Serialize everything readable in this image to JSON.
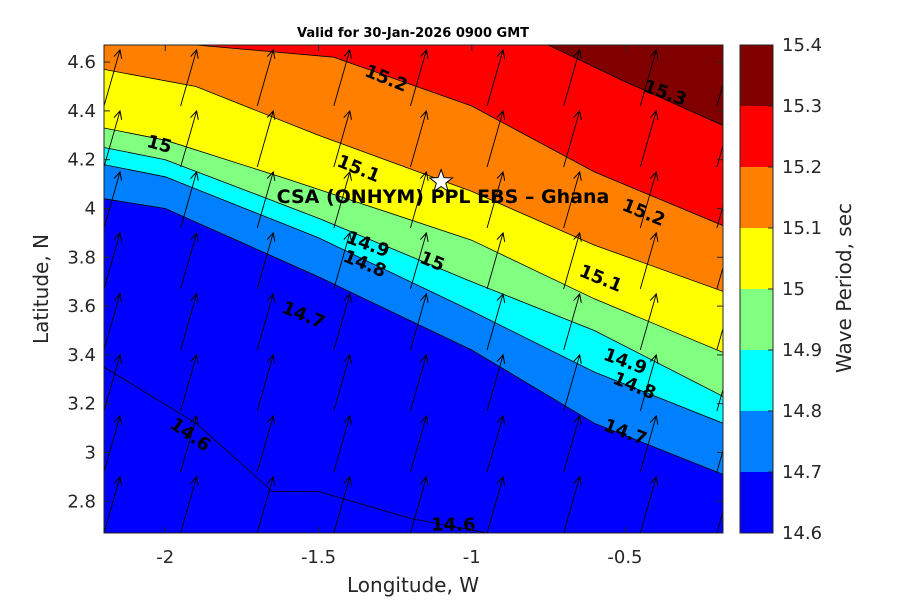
{
  "chart_data": {
    "type": "contourf",
    "title": "Valid for 30-Jan-2026 0900 GMT",
    "xlabel": "Longitude, W",
    "ylabel": "Latitude, N",
    "xlim": [
      -2.2,
      -0.18
    ],
    "ylim": [
      2.67,
      4.67
    ],
    "xticks": [
      -2,
      -1.5,
      -1,
      -0.5
    ],
    "xtick_labels": [
      "-2",
      "-1.5",
      "-1",
      "-0.5"
    ],
    "yticks": [
      2.8,
      3.0,
      3.2,
      3.4,
      3.6,
      3.8,
      4.0,
      4.2,
      4.4,
      4.6
    ],
    "ytick_labels": [
      "2.8",
      "3",
      "3.2",
      "3.4",
      "3.6",
      "3.8",
      "4",
      "4.2",
      "4.4",
      "4.6"
    ],
    "colorbar": {
      "label": "Wave Period, sec",
      "levels": [
        14.6,
        14.7,
        14.8,
        14.9,
        15.0,
        15.1,
        15.2,
        15.3,
        15.4
      ],
      "tick_labels": [
        "14.6",
        "14.7",
        "14.8",
        "14.9",
        "15",
        "15.1",
        "15.2",
        "15.3",
        "15.4"
      ],
      "colors": [
        "#0000ff",
        "#0080ff",
        "#00ffff",
        "#80ff80",
        "#ffff00",
        "#ff8000",
        "#ff0000",
        "#800000"
      ]
    },
    "contour_lines": [
      {
        "level": 14.6,
        "points": [
          [
            -2.2,
            3.35
          ],
          [
            -1.9,
            3.12
          ],
          [
            -1.65,
            2.84
          ],
          [
            -1.5,
            2.84
          ],
          [
            -1.2,
            2.73
          ],
          [
            -0.95,
            2.67
          ]
        ]
      },
      {
        "level": 14.7,
        "points": [
          [
            -2.2,
            4.04
          ],
          [
            -2.0,
            4.0
          ],
          [
            -1.5,
            3.72
          ],
          [
            -1.0,
            3.42
          ],
          [
            -0.6,
            3.12
          ],
          [
            -0.18,
            2.91
          ]
        ]
      },
      {
        "level": 14.8,
        "points": [
          [
            -2.2,
            4.18
          ],
          [
            -2.0,
            4.13
          ],
          [
            -1.5,
            3.88
          ],
          [
            -1.0,
            3.58
          ],
          [
            -0.6,
            3.33
          ],
          [
            -0.18,
            3.12
          ]
        ]
      },
      {
        "level": 14.9,
        "points": [
          [
            -2.2,
            4.25
          ],
          [
            -2.0,
            4.2
          ],
          [
            -1.5,
            3.96
          ],
          [
            -1.0,
            3.7
          ],
          [
            -0.6,
            3.5
          ],
          [
            -0.18,
            3.23
          ]
        ]
      },
      {
        "level": 15.0,
        "points": [
          [
            -2.2,
            4.33
          ],
          [
            -2.0,
            4.28
          ],
          [
            -1.6,
            4.12
          ],
          [
            -1.0,
            3.87
          ],
          [
            -0.6,
            3.63
          ],
          [
            -0.18,
            3.41
          ]
        ]
      },
      {
        "level": 15.1,
        "points": [
          [
            -2.2,
            4.57
          ],
          [
            -1.9,
            4.5
          ],
          [
            -1.5,
            4.3
          ],
          [
            -1.0,
            4.07
          ],
          [
            -0.6,
            3.85
          ],
          [
            -0.18,
            3.66
          ]
        ]
      },
      {
        "level": 15.2,
        "points": [
          [
            -2.2,
            4.67
          ],
          [
            -1.9,
            4.67
          ],
          [
            -1.45,
            4.62
          ],
          [
            -1.0,
            4.42
          ],
          [
            -0.6,
            4.15
          ],
          [
            -0.18,
            3.93
          ]
        ]
      },
      {
        "level": 15.3,
        "points": [
          [
            -0.75,
            4.67
          ],
          [
            -0.5,
            4.52
          ],
          [
            -0.18,
            4.34
          ]
        ]
      }
    ],
    "contour_labels": [
      {
        "text": "15.2",
        "x": -1.28,
        "y": 4.53,
        "rotate": 22
      },
      {
        "text": "15.3",
        "x": -0.37,
        "y": 4.47,
        "rotate": 20
      },
      {
        "text": "15",
        "x": -2.02,
        "y": 4.26,
        "rotate": 15
      },
      {
        "text": "15.1",
        "x": -1.37,
        "y": 4.16,
        "rotate": 22
      },
      {
        "text": "15.2",
        "x": -0.44,
        "y": 3.98,
        "rotate": 22
      },
      {
        "text": "14.9",
        "x": -1.34,
        "y": 3.85,
        "rotate": 20
      },
      {
        "text": "14.8",
        "x": -1.35,
        "y": 3.77,
        "rotate": 22
      },
      {
        "text": "15",
        "x": -1.13,
        "y": 3.78,
        "rotate": 22
      },
      {
        "text": "15.1",
        "x": -0.58,
        "y": 3.71,
        "rotate": 22
      },
      {
        "text": "14.7",
        "x": -1.55,
        "y": 3.56,
        "rotate": 22
      },
      {
        "text": "14.9",
        "x": -0.5,
        "y": 3.37,
        "rotate": 20
      },
      {
        "text": "14.8",
        "x": -0.47,
        "y": 3.27,
        "rotate": 22
      },
      {
        "text": "14.7",
        "x": -0.5,
        "y": 3.08,
        "rotate": 20
      },
      {
        "text": "14.6",
        "x": -1.92,
        "y": 3.07,
        "rotate": 35
      },
      {
        "text": "14.6",
        "x": -1.06,
        "y": 2.7,
        "rotate": 0
      }
    ],
    "vectors": {
      "type": "wave direction arrows",
      "lon": [
        -2.2,
        -1.95,
        -1.7,
        -1.45,
        -1.2,
        -0.95,
        -0.7,
        -0.45,
        -0.2
      ],
      "lat": [
        2.67,
        2.92,
        3.17,
        3.42,
        3.67,
        3.92,
        4.17,
        4.42
      ],
      "direction": "toward north-northeast"
    },
    "annotation": {
      "text": "CSA (ONHYM) PPL EBS  – Ghana",
      "marker": "star",
      "x": -1.1,
      "y": 4.11
    }
  }
}
